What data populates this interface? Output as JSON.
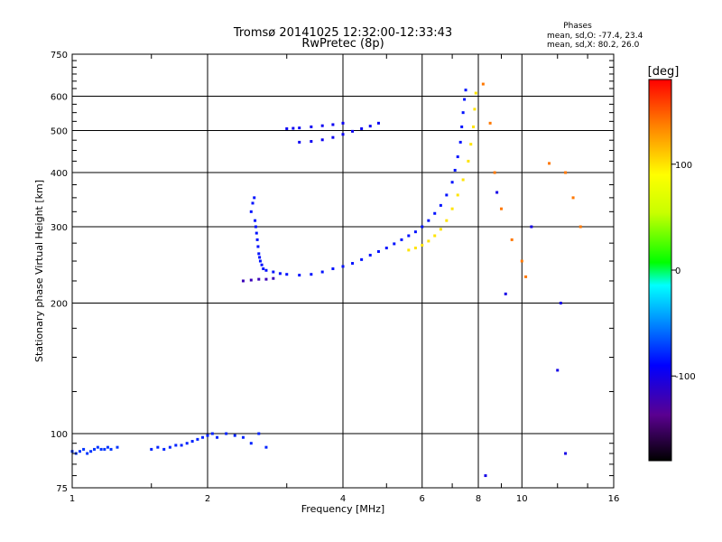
{
  "chart_data": {
    "type": "scatter",
    "title": "Tromsø 20141025 12:32:00-12:33:43",
    "subtitle": "RwPretec (8p)",
    "xlabel": "Frequency [MHz]",
    "ylabel": "Stationary phase Virtual Height [km]",
    "x_scale": "log",
    "y_scale": "log",
    "xlim": [
      1,
      16
    ],
    "ylim": [
      75,
      750
    ],
    "grid": true,
    "x_ticks": [
      1,
      2,
      4,
      6,
      8,
      10,
      16
    ],
    "x_tick_labels": [
      "1",
      "2",
      "4",
      "6",
      "8",
      "10",
      "16"
    ],
    "y_ticks": [
      75,
      100,
      200,
      300,
      400,
      500,
      600,
      750
    ],
    "y_tick_labels": [
      "75",
      "100",
      "200",
      "300",
      "400",
      "500",
      "600",
      "750"
    ],
    "phase_stats": {
      "title": "Phases",
      "line1": "mean, sd,O: -77.4, 23.4",
      "line2": "mean, sd,X:  80.2, 26.0"
    },
    "colorbar": {
      "label": "[deg]",
      "range": [
        -180,
        180
      ],
      "ticks": [
        100,
        0,
        -100
      ],
      "tick_labels": [
        "100",
        "0",
        "-100"
      ]
    },
    "series": [
      {
        "phase": -75,
        "points": [
          [
            1.0,
            91
          ],
          [
            1.02,
            90
          ],
          [
            1.04,
            91
          ],
          [
            1.06,
            92
          ],
          [
            1.08,
            90
          ],
          [
            1.1,
            91
          ],
          [
            1.12,
            92
          ],
          [
            1.14,
            93
          ],
          [
            1.16,
            92
          ],
          [
            1.18,
            92
          ],
          [
            1.2,
            93
          ],
          [
            1.22,
            92
          ],
          [
            1.26,
            93
          ]
        ]
      },
      {
        "phase": -80,
        "points": [
          [
            1.5,
            92
          ],
          [
            1.55,
            93
          ],
          [
            1.6,
            92
          ],
          [
            1.65,
            93
          ],
          [
            1.7,
            94
          ],
          [
            1.75,
            94
          ],
          [
            1.8,
            95
          ],
          [
            1.85,
            96
          ],
          [
            1.9,
            97
          ],
          [
            1.95,
            98
          ],
          [
            2.0,
            99
          ],
          [
            2.05,
            100
          ],
          [
            2.1,
            98
          ],
          [
            2.2,
            100
          ],
          [
            2.3,
            99
          ],
          [
            2.4,
            98
          ],
          [
            2.5,
            95
          ],
          [
            2.6,
            100
          ],
          [
            2.7,
            93
          ]
        ]
      },
      {
        "phase": -85,
        "points": [
          [
            2.5,
            325
          ],
          [
            2.52,
            340
          ],
          [
            2.54,
            350
          ],
          [
            2.55,
            310
          ],
          [
            2.56,
            300
          ],
          [
            2.57,
            290
          ],
          [
            2.58,
            280
          ],
          [
            2.59,
            270
          ],
          [
            2.6,
            260
          ],
          [
            2.61,
            255
          ],
          [
            2.62,
            250
          ],
          [
            2.64,
            245
          ],
          [
            2.66,
            240
          ],
          [
            2.7,
            238
          ],
          [
            2.8,
            236
          ],
          [
            2.9,
            234
          ],
          [
            3.0,
            233
          ],
          [
            3.2,
            232
          ],
          [
            3.4,
            233
          ],
          [
            3.6,
            236
          ],
          [
            3.8,
            240
          ],
          [
            4.0,
            243
          ],
          [
            4.2,
            247
          ],
          [
            4.4,
            252
          ],
          [
            4.6,
            258
          ],
          [
            4.8,
            263
          ],
          [
            5.0,
            268
          ],
          [
            5.2,
            274
          ],
          [
            5.4,
            280
          ],
          [
            5.6,
            286
          ],
          [
            5.8,
            292
          ],
          [
            6.0,
            300
          ],
          [
            6.2,
            310
          ],
          [
            6.4,
            322
          ],
          [
            6.6,
            336
          ],
          [
            6.8,
            355
          ],
          [
            7.0,
            380
          ],
          [
            7.1,
            405
          ],
          [
            7.2,
            435
          ],
          [
            7.3,
            470
          ],
          [
            7.35,
            510
          ],
          [
            7.4,
            550
          ],
          [
            7.45,
            590
          ],
          [
            7.5,
            620
          ]
        ]
      },
      {
        "phase": -95,
        "points": [
          [
            3.0,
            505
          ],
          [
            3.1,
            506
          ],
          [
            3.2,
            507
          ],
          [
            3.4,
            510
          ],
          [
            3.6,
            513
          ],
          [
            3.8,
            516
          ],
          [
            4.0,
            520
          ],
          [
            3.2,
            470
          ],
          [
            3.4,
            472
          ],
          [
            3.6,
            476
          ],
          [
            3.8,
            482
          ],
          [
            4.0,
            490
          ],
          [
            4.2,
            498
          ],
          [
            4.4,
            505
          ],
          [
            4.6,
            512
          ],
          [
            4.8,
            520
          ]
        ]
      },
      {
        "phase": -120,
        "points": [
          [
            2.4,
            225
          ],
          [
            2.5,
            226
          ],
          [
            2.6,
            227
          ],
          [
            2.7,
            227
          ],
          [
            2.8,
            228
          ]
        ]
      },
      {
        "phase": 100,
        "points": [
          [
            5.6,
            265
          ],
          [
            5.8,
            268
          ],
          [
            6.0,
            272
          ],
          [
            6.2,
            278
          ],
          [
            6.4,
            286
          ],
          [
            6.6,
            296
          ],
          [
            6.8,
            310
          ],
          [
            7.0,
            330
          ],
          [
            7.2,
            355
          ],
          [
            7.4,
            385
          ],
          [
            7.6,
            425
          ],
          [
            7.7,
            465
          ],
          [
            7.8,
            510
          ],
          [
            7.85,
            560
          ],
          [
            7.9,
            610
          ]
        ]
      },
      {
        "phase": 140,
        "points": [
          [
            8.2,
            640
          ],
          [
            8.5,
            520
          ],
          [
            8.7,
            400
          ],
          [
            9.0,
            330
          ],
          [
            9.5,
            280
          ],
          [
            10.0,
            250
          ],
          [
            10.2,
            230
          ],
          [
            11.5,
            420
          ],
          [
            12.5,
            400
          ],
          [
            13.0,
            350
          ],
          [
            13.5,
            300
          ]
        ]
      },
      {
        "phase": -100,
        "points": [
          [
            8.3,
            80
          ],
          [
            8.8,
            360
          ],
          [
            9.2,
            210
          ],
          [
            10.5,
            300
          ],
          [
            12.0,
            140
          ],
          [
            12.2,
            200
          ],
          [
            12.5,
            90
          ]
        ]
      }
    ]
  }
}
